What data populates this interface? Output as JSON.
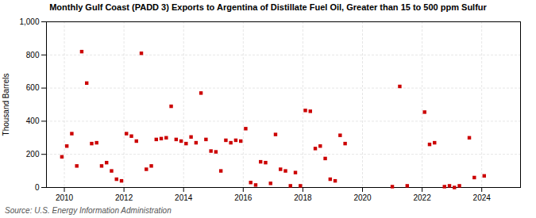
{
  "chart_data": {
    "type": "scatter",
    "title": "Monthly Gulf Coast (PADD 3) Exports to Argentina of Distillate Fuel Oil, Greater than 15 to 500 ppm Sulfur",
    "caption": "Source: U.S. Energy Information Administration",
    "ylabel": "Thousand Barrels",
    "color": "#cc0000",
    "marker": "square",
    "grid": true,
    "xlim": [
      2009.4,
      2025.3
    ],
    "xticks": [
      2010,
      2012,
      2014,
      2016,
      2018,
      2020,
      2022,
      2024
    ],
    "ylim": [
      0,
      1000
    ],
    "yticks": [
      0,
      200,
      400,
      600,
      800,
      {
        "value": 1000,
        "label": "1,000"
      }
    ],
    "x": [
      2009.917,
      2010.083,
      2010.25,
      2010.417,
      2010.583,
      2010.75,
      2010.917,
      2011.083,
      2011.25,
      2011.417,
      2011.583,
      2011.75,
      2011.917,
      2012.083,
      2012.25,
      2012.417,
      2012.583,
      2012.75,
      2012.917,
      2013.083,
      2013.25,
      2013.417,
      2013.583,
      2013.75,
      2013.917,
      2014.083,
      2014.25,
      2014.417,
      2014.583,
      2014.75,
      2014.917,
      2015.083,
      2015.25,
      2015.417,
      2015.583,
      2015.75,
      2015.917,
      2016.083,
      2016.25,
      2016.417,
      2016.583,
      2016.75,
      2016.917,
      2017.083,
      2017.25,
      2017.417,
      2017.583,
      2017.75,
      2017.917,
      2018.083,
      2018.25,
      2018.417,
      2018.583,
      2018.75,
      2018.917,
      2019.083,
      2019.25,
      2019.417,
      2021.0,
      2021.25,
      2021.5,
      2022.083,
      2022.25,
      2022.417,
      2022.75,
      2022.917,
      2023.083,
      2023.25,
      2023.583,
      2023.75,
      2024.083
    ],
    "values": [
      185,
      250,
      325,
      130,
      820,
      630,
      265,
      270,
      130,
      150,
      100,
      50,
      40,
      325,
      310,
      280,
      810,
      110,
      130,
      290,
      295,
      300,
      490,
      290,
      280,
      265,
      305,
      270,
      570,
      290,
      220,
      215,
      100,
      285,
      270,
      285,
      280,
      355,
      30,
      15,
      155,
      150,
      25,
      320,
      110,
      100,
      10,
      90,
      10,
      465,
      460,
      235,
      250,
      175,
      50,
      40,
      315,
      265,
      5,
      610,
      10,
      455,
      260,
      270,
      5,
      10,
      0,
      10,
      300,
      60,
      70
    ]
  }
}
